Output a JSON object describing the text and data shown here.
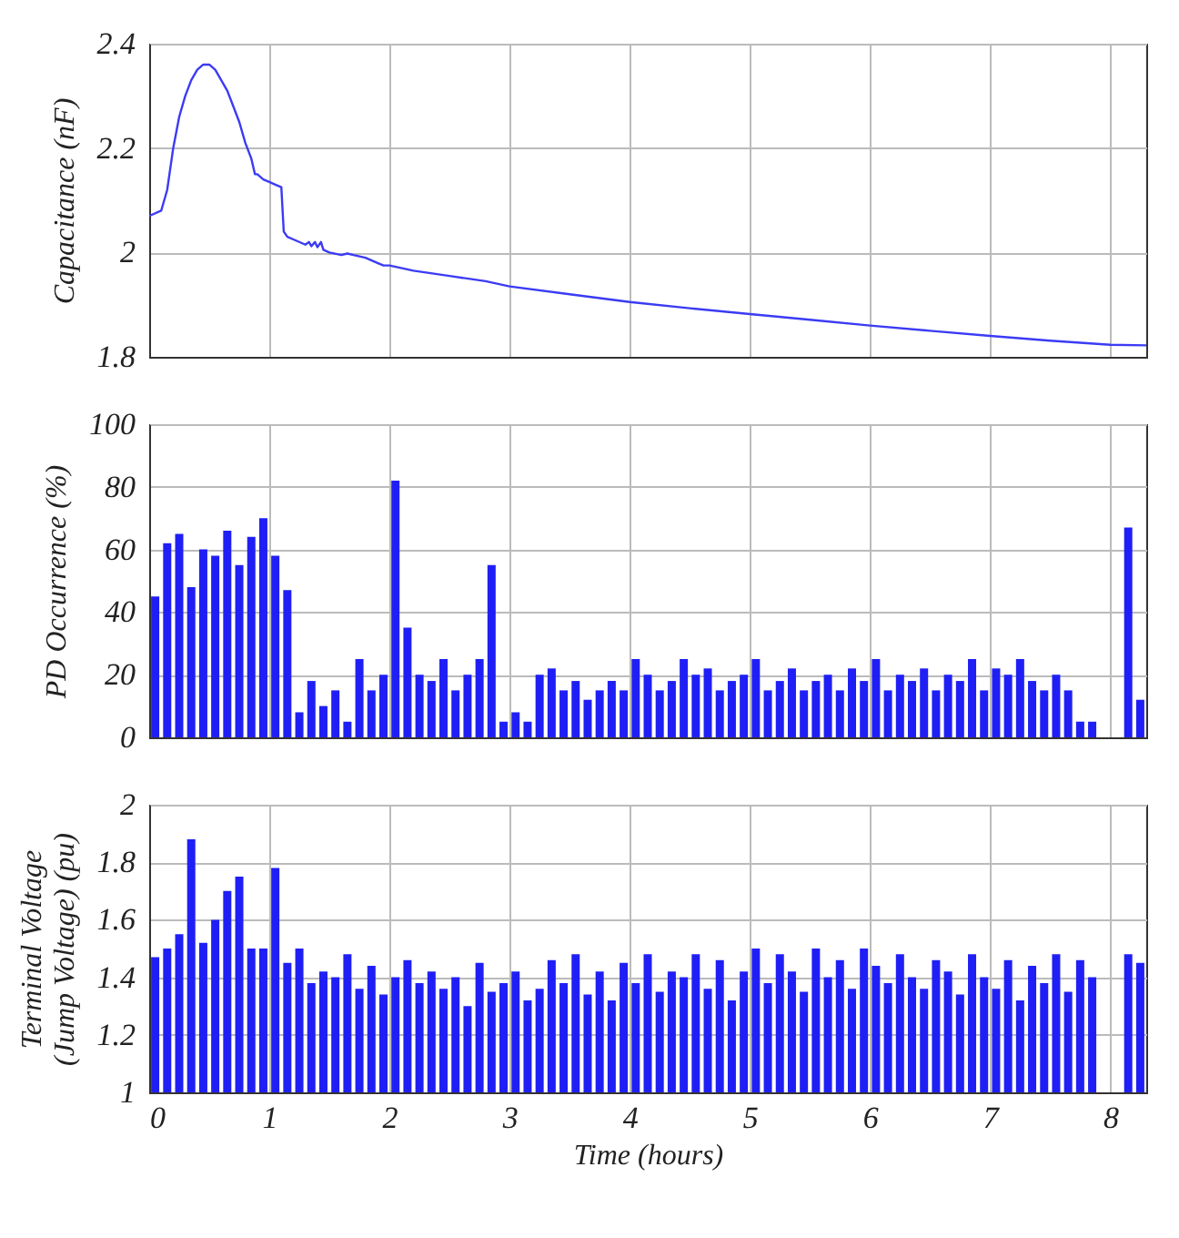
{
  "chart_data": [
    {
      "type": "line",
      "ylabel": "Capacitance (nF)",
      "xlim": [
        0,
        8.3
      ],
      "xticks": [
        0,
        1,
        2,
        3,
        4,
        5,
        6,
        7,
        8
      ],
      "ylim": [
        1.8,
        2.4
      ],
      "yticks": [
        1.8,
        2,
        2.2,
        2.4
      ],
      "grid": true,
      "tick_labels": "y",
      "series": [
        {
          "color": "#3b3bf5",
          "x": [
            0,
            0.1,
            0.15,
            0.2,
            0.25,
            0.3,
            0.35,
            0.4,
            0.45,
            0.5,
            0.55,
            0.6,
            0.65,
            0.7,
            0.75,
            0.8,
            0.85,
            0.87,
            0.88,
            0.9,
            0.95,
            1.0,
            1.05,
            1.1,
            1.12,
            1.15,
            1.2,
            1.3,
            1.33,
            1.35,
            1.38,
            1.4,
            1.43,
            1.45,
            1.5,
            1.6,
            1.65,
            1.7,
            1.8,
            1.9,
            1.95,
            2.0,
            2.2,
            2.5,
            2.8,
            3.0,
            3.5,
            4.0,
            4.5,
            5.0,
            5.5,
            6.0,
            6.5,
            7.0,
            7.5,
            8.0,
            8.3
          ],
          "values": [
            2.07,
            2.08,
            2.12,
            2.2,
            2.26,
            2.3,
            2.33,
            2.35,
            2.36,
            2.36,
            2.35,
            2.33,
            2.31,
            2.28,
            2.25,
            2.21,
            2.18,
            2.16,
            2.15,
            2.15,
            2.14,
            2.135,
            2.13,
            2.125,
            2.04,
            2.03,
            2.025,
            2.015,
            2.02,
            2.012,
            2.02,
            2.01,
            2.02,
            2.005,
            2.0,
            1.995,
            1.998,
            1.995,
            1.99,
            1.98,
            1.975,
            1.975,
            1.965,
            1.955,
            1.945,
            1.935,
            1.92,
            1.905,
            1.893,
            1.882,
            1.871,
            1.86,
            1.85,
            1.84,
            1.831,
            1.823,
            1.822
          ]
        }
      ]
    },
    {
      "type": "bar",
      "ylabel": "PD Occurrence (%)",
      "xlim": [
        0,
        8.3
      ],
      "xticks": [
        0,
        1,
        2,
        3,
        4,
        5,
        6,
        7,
        8
      ],
      "ylim": [
        0,
        100
      ],
      "yticks": [
        0,
        20,
        40,
        60,
        80,
        100
      ],
      "grid": true,
      "tick_labels": "y",
      "x": [
        0.05,
        0.15,
        0.25,
        0.35,
        0.45,
        0.55,
        0.65,
        0.75,
        0.85,
        0.95,
        1.05,
        1.15,
        1.25,
        1.35,
        1.45,
        1.55,
        1.65,
        1.75,
        1.85,
        1.95,
        2.05,
        2.15,
        2.25,
        2.35,
        2.45,
        2.55,
        2.65,
        2.75,
        2.85,
        2.95,
        3.05,
        3.15,
        3.25,
        3.35,
        3.45,
        3.55,
        3.65,
        3.75,
        3.85,
        3.95,
        4.05,
        4.15,
        4.25,
        4.35,
        4.45,
        4.55,
        4.65,
        4.75,
        4.85,
        4.95,
        5.05,
        5.15,
        5.25,
        5.35,
        5.45,
        5.55,
        5.65,
        5.75,
        5.85,
        5.95,
        6.05,
        6.15,
        6.25,
        6.35,
        6.45,
        6.55,
        6.65,
        6.75,
        6.85,
        6.95,
        7.05,
        7.15,
        7.25,
        7.35,
        7.45,
        7.55,
        7.65,
        7.75,
        7.85,
        7.95,
        8.05,
        8.15,
        8.25
      ],
      "series": [
        {
          "color": "#1f1ff5",
          "values": [
            45,
            62,
            65,
            48,
            60,
            58,
            66,
            55,
            64,
            70,
            58,
            47,
            8,
            18,
            10,
            15,
            5,
            25,
            15,
            20,
            82,
            35,
            20,
            18,
            25,
            15,
            20,
            25,
            55,
            5,
            8,
            5,
            20,
            22,
            15,
            18,
            12,
            15,
            18,
            15,
            25,
            20,
            15,
            18,
            25,
            20,
            22,
            15,
            18,
            20,
            25,
            15,
            18,
            22,
            15,
            18,
            20,
            15,
            22,
            18,
            25,
            15,
            20,
            18,
            22,
            15,
            20,
            18,
            25,
            15,
            22,
            20,
            25,
            18,
            15,
            20,
            15,
            5,
            5,
            null,
            null,
            67,
            12
          ]
        }
      ]
    },
    {
      "type": "bar",
      "ylabel": "Terminal Voltage\n(Jump Voltage) (pu)",
      "xlabel": "Time (hours)",
      "xlim": [
        0,
        8.3
      ],
      "xticks": [
        0,
        1,
        2,
        3,
        4,
        5,
        6,
        7,
        8
      ],
      "ylim": [
        1,
        2
      ],
      "yticks": [
        1,
        1.2,
        1.4,
        1.6,
        1.8,
        2
      ],
      "grid": true,
      "x": [
        0.05,
        0.15,
        0.25,
        0.35,
        0.45,
        0.55,
        0.65,
        0.75,
        0.85,
        0.95,
        1.05,
        1.15,
        1.25,
        1.35,
        1.45,
        1.55,
        1.65,
        1.75,
        1.85,
        1.95,
        2.05,
        2.15,
        2.25,
        2.35,
        2.45,
        2.55,
        2.65,
        2.75,
        2.85,
        2.95,
        3.05,
        3.15,
        3.25,
        3.35,
        3.45,
        3.55,
        3.65,
        3.75,
        3.85,
        3.95,
        4.05,
        4.15,
        4.25,
        4.35,
        4.45,
        4.55,
        4.65,
        4.75,
        4.85,
        4.95,
        5.05,
        5.15,
        5.25,
        5.35,
        5.45,
        5.55,
        5.65,
        5.75,
        5.85,
        5.95,
        6.05,
        6.15,
        6.25,
        6.35,
        6.45,
        6.55,
        6.65,
        6.75,
        6.85,
        6.95,
        7.05,
        7.15,
        7.25,
        7.35,
        7.45,
        7.55,
        7.65,
        7.75,
        7.85,
        7.95,
        8.05,
        8.15,
        8.25
      ],
      "series": [
        {
          "color": "#1f1ff5",
          "values": [
            1.47,
            1.5,
            1.55,
            1.88,
            1.52,
            1.6,
            1.7,
            1.75,
            1.5,
            1.5,
            1.78,
            1.45,
            1.5,
            1.38,
            1.42,
            1.4,
            1.48,
            1.36,
            1.44,
            1.34,
            1.4,
            1.46,
            1.38,
            1.42,
            1.36,
            1.4,
            1.3,
            1.45,
            1.35,
            1.38,
            1.42,
            1.32,
            1.36,
            1.46,
            1.38,
            1.48,
            1.34,
            1.42,
            1.32,
            1.45,
            1.38,
            1.48,
            1.35,
            1.42,
            1.4,
            1.48,
            1.36,
            1.46,
            1.32,
            1.42,
            1.5,
            1.38,
            1.48,
            1.42,
            1.35,
            1.5,
            1.4,
            1.46,
            1.36,
            1.5,
            1.44,
            1.38,
            1.48,
            1.4,
            1.36,
            1.46,
            1.42,
            1.34,
            1.48,
            1.4,
            1.36,
            1.46,
            1.32,
            1.44,
            1.38,
            1.48,
            1.35,
            1.46,
            1.4,
            null,
            null,
            1.48,
            1.45
          ]
        }
      ]
    }
  ]
}
